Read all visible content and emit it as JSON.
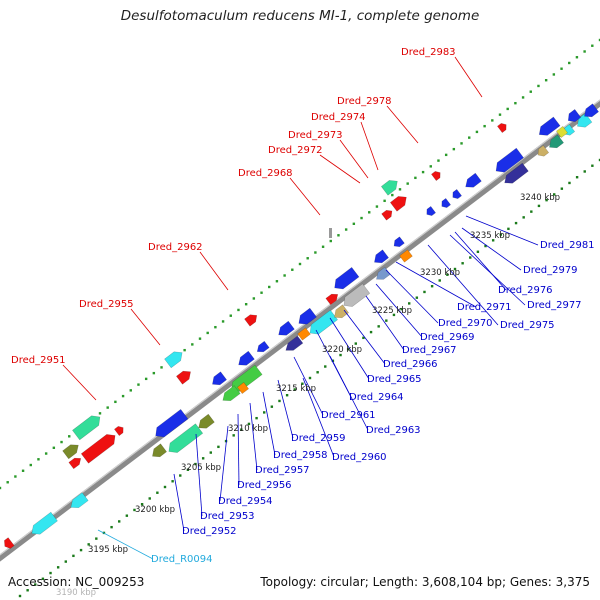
{
  "title": "Desulfotomaculum reducens MI-1, complete genome",
  "footer": {
    "accession": "Accession: NC_009253",
    "summary": "Topology: circular; Length: 3,608,104 bp; Genes: 3,375"
  },
  "colors": {
    "backbone": "#8a8a8a",
    "forward_label": "#dd0000",
    "reverse_label": "#0000cc",
    "rna_label": "#22aadd",
    "dot_forward": "#2a9a2a",
    "dot_reverse": "#1a7a1a"
  },
  "scale_ticks": [
    "3190 kbp",
    "3195 kbp",
    "3200 kbp",
    "3205 kbp",
    "3210 kbp",
    "3215 kbp",
    "3220 kbp",
    "3225 kbp",
    "3230 kbp",
    "3235 kbp",
    "3240 kbp"
  ],
  "labels": [
    {
      "text": "Dred_2983",
      "strand": "forward"
    },
    {
      "text": "Dred_2978",
      "strand": "forward"
    },
    {
      "text": "Dred_2974",
      "strand": "forward"
    },
    {
      "text": "Dred_2973",
      "strand": "forward"
    },
    {
      "text": "Dred_2972",
      "strand": "forward"
    },
    {
      "text": "Dred_2968",
      "strand": "forward"
    },
    {
      "text": "Dred_2962",
      "strand": "forward"
    },
    {
      "text": "Dred_2955",
      "strand": "forward"
    },
    {
      "text": "Dred_2951",
      "strand": "forward"
    },
    {
      "text": "Dred_2981",
      "strand": "reverse"
    },
    {
      "text": "Dred_2979",
      "strand": "reverse"
    },
    {
      "text": "Dred_2976",
      "strand": "reverse"
    },
    {
      "text": "Dred_2977",
      "strand": "reverse"
    },
    {
      "text": "Dred_2971",
      "strand": "reverse"
    },
    {
      "text": "Dred_2975",
      "strand": "reverse"
    },
    {
      "text": "Dred_2970",
      "strand": "reverse"
    },
    {
      "text": "Dred_2969",
      "strand": "reverse"
    },
    {
      "text": "Dred_2967",
      "strand": "reverse"
    },
    {
      "text": "Dred_2966",
      "strand": "reverse"
    },
    {
      "text": "Dred_2965",
      "strand": "reverse"
    },
    {
      "text": "Dred_2964",
      "strand": "reverse"
    },
    {
      "text": "Dred_2961",
      "strand": "reverse"
    },
    {
      "text": "Dred_2963",
      "strand": "reverse"
    },
    {
      "text": "Dred_2959",
      "strand": "reverse"
    },
    {
      "text": "Dred_2958",
      "strand": "reverse"
    },
    {
      "text": "Dred_2960",
      "strand": "reverse"
    },
    {
      "text": "Dred_2957",
      "strand": "reverse"
    },
    {
      "text": "Dred_2956",
      "strand": "reverse"
    },
    {
      "text": "Dred_2954",
      "strand": "reverse"
    },
    {
      "text": "Dred_2953",
      "strand": "reverse"
    },
    {
      "text": "Dred_2952",
      "strand": "reverse"
    },
    {
      "text": "Dred_R0094",
      "strand": "rna"
    }
  ]
}
